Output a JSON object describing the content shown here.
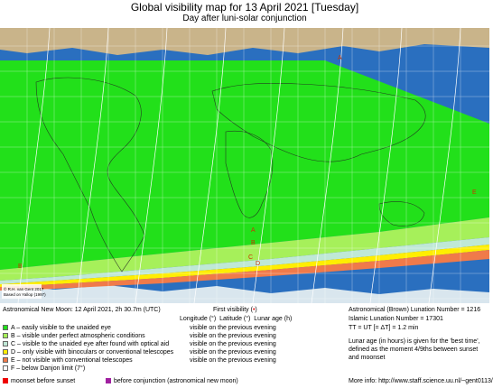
{
  "header": {
    "title": "Global visibility map for 13 April 2021 [Tuesday]",
    "subtitle": "Day after luni-solar conjunction"
  },
  "map": {
    "credit_line1": "© R.H. van Gent 2017",
    "credit_line2": "Based on Yallop (1997)",
    "zone_labels": {
      "A": "A",
      "B": "B",
      "C": "C",
      "D": "D",
      "E": "E"
    },
    "colors": {
      "ocean": "#2a6fbf",
      "land": "#c9b48a",
      "zone_A": "#22e01a",
      "zone_B": "#a6f05a",
      "zone_C": "#bfe8d6",
      "zone_D": "#ffee00",
      "zone_E": "#f07a4a",
      "grid": "#ffffff",
      "coast": "#222222"
    }
  },
  "info": {
    "new_moon": "Astronomical New Moon: 12 April 2021, 2h 30.7m (UTC)",
    "first_visibility": "First visibility (",
    "first_visibility_marker": "•",
    "first_visibility_end": ")",
    "col_longitude": "Longitude (°)",
    "col_latitude": "Latitude (°)",
    "col_lunar_age": "Lunar age (h)",
    "lunation_brown": "Astronomical (Brown) Lunation Number = 1216",
    "lunation_islamic": "Islamic Lunation Number = 17301",
    "tt_ut": "TT = UT [= ΔT] = 1.2 min",
    "age_note_1": "Lunar age (in hours) is given for the 'best time',",
    "age_note_2": "defined as the moment 4/9ths between sunset",
    "age_note_3": "and moonset",
    "more_info": "More info: http://www.staff.science.uu.nl/~gent0113/"
  },
  "legend": {
    "items": [
      {
        "color": "#22e01a",
        "label": "A – easily visible to the unaided eye",
        "status": "visible on the previous evening"
      },
      {
        "color": "#a6f05a",
        "label": "B – visible under perfect atmospheric conditions",
        "status": "visible on the previous evening"
      },
      {
        "color": "#bfe8d6",
        "label": "C – visible to the unaided eye after found with optical aid",
        "status": "visible on the previous evening"
      },
      {
        "color": "#ffee00",
        "label": "D – only visible with binoculars or conventional telescopes",
        "status": "visible on the previous evening"
      },
      {
        "color": "#f07a4a",
        "label": "E – not visible with conventional telescopes",
        "status": "visible on the previous evening"
      },
      {
        "color": "#ffffff",
        "label": "F – below Danjon limit (7°)",
        "status": ""
      }
    ],
    "moonset_label": "moonset before sunset",
    "moonset_color": "#ee0000",
    "before_conj_label": "before conjunction (astronomical new moon)",
    "before_conj_color": "#a020a0"
  }
}
